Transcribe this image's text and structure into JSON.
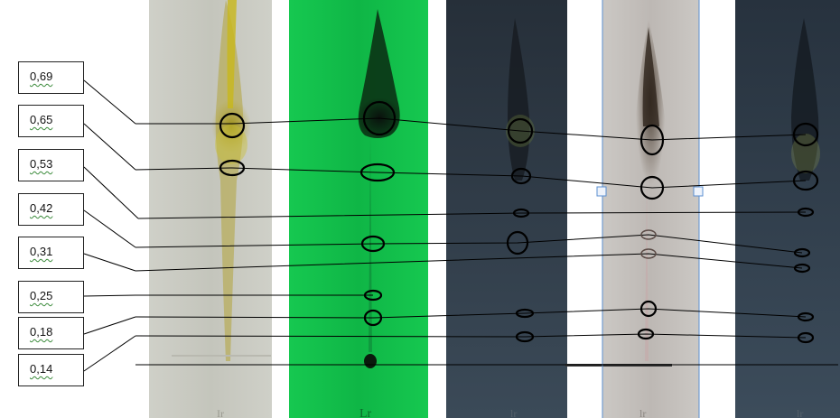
{
  "figure": {
    "rf_values": [
      "0,69",
      "0,65",
      "0,53",
      "0,42",
      "0,31",
      "0,25",
      "0,18",
      "0,14"
    ],
    "plates": [
      {
        "name": "plate-visible-light",
        "background": "#c9cac2",
        "tint": "#a89a22"
      },
      {
        "name": "plate-uv-254",
        "background": "#12c04a",
        "tint": "#0a3a12"
      },
      {
        "name": "plate-uv-366",
        "background": "#2c3a47",
        "tint": "#151a1f"
      },
      {
        "name": "plate-derivatized",
        "background": "#c3c0bd",
        "tint": "#3a2a20"
      },
      {
        "name": "plate-uv-366-derivatized",
        "background": "#2f3d4b",
        "tint": "#141a20"
      }
    ],
    "colors": {
      "outline": "#000000",
      "connector": "#000000",
      "selection": "#5b8fd0"
    }
  }
}
